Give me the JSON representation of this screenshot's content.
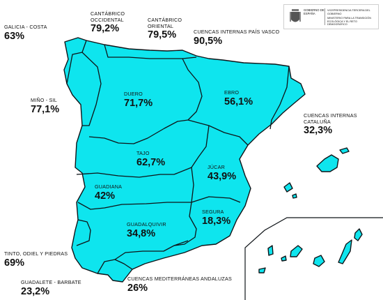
{
  "logo": {
    "ministry_a": "GOBIERNO DE ESPAÑA",
    "ministry_b": "VICEPRESIDENCIA TERCERA DEL GOBIERNO",
    "ministry_c": "MINISTERIO PARA LA TRANSICIÓN ECOLÓGICA Y EL RETO DEMOGRÁFICO",
    "icon": "coat-of-arms-icon"
  },
  "basins": [
    {
      "id": "galicia-costa",
      "name": "GALICIA - COSTA",
      "value": "63%"
    },
    {
      "id": "cantabrico-occidental",
      "name": "CANTÁBRICO OCCIDENTAL",
      "value": "79,2%"
    },
    {
      "id": "cantabrico-oriental",
      "name": "CANTÁBRICO ORIENTAL",
      "value": "79,5%"
    },
    {
      "id": "pais-vasco",
      "name": "CUENCAS INTERNAS PAÍS VASCO",
      "value": "90,5%"
    },
    {
      "id": "mino-sil",
      "name": "MIÑO - SIL",
      "value": "77,1%"
    },
    {
      "id": "duero",
      "name": "DUERO",
      "value": "71,7%"
    },
    {
      "id": "ebro",
      "name": "EBRO",
      "value": "56,1%"
    },
    {
      "id": "cataluna",
      "name": "CUENCAS INTERNAS CATALUÑA",
      "value": "32,3%"
    },
    {
      "id": "tajo",
      "name": "TAJO",
      "value": "62,7%"
    },
    {
      "id": "jucar",
      "name": "JÚCAR",
      "value": "43,9%"
    },
    {
      "id": "guadiana",
      "name": "GUADIANA",
      "value": "42%"
    },
    {
      "id": "segura",
      "name": "SEGURA",
      "value": "18,3%"
    },
    {
      "id": "guadalquivir",
      "name": "GUADALQUIVIR",
      "value": "34,8%"
    },
    {
      "id": "tinto-odiel-piedras",
      "name": "TINTO, ODIEL Y PIEDRAS",
      "value": "69%"
    },
    {
      "id": "guadalete-barbate",
      "name": "GUADALETE - BARBATE",
      "value": "23,2%"
    },
    {
      "id": "mediterraneas-andaluzas",
      "name": "CUENCAS MEDITERRÁNEAS ANDALUZAS",
      "value": "26%"
    }
  ],
  "colors": {
    "fill": "#0ee5ee",
    "stroke": "#0f1418",
    "text": "#111111"
  }
}
